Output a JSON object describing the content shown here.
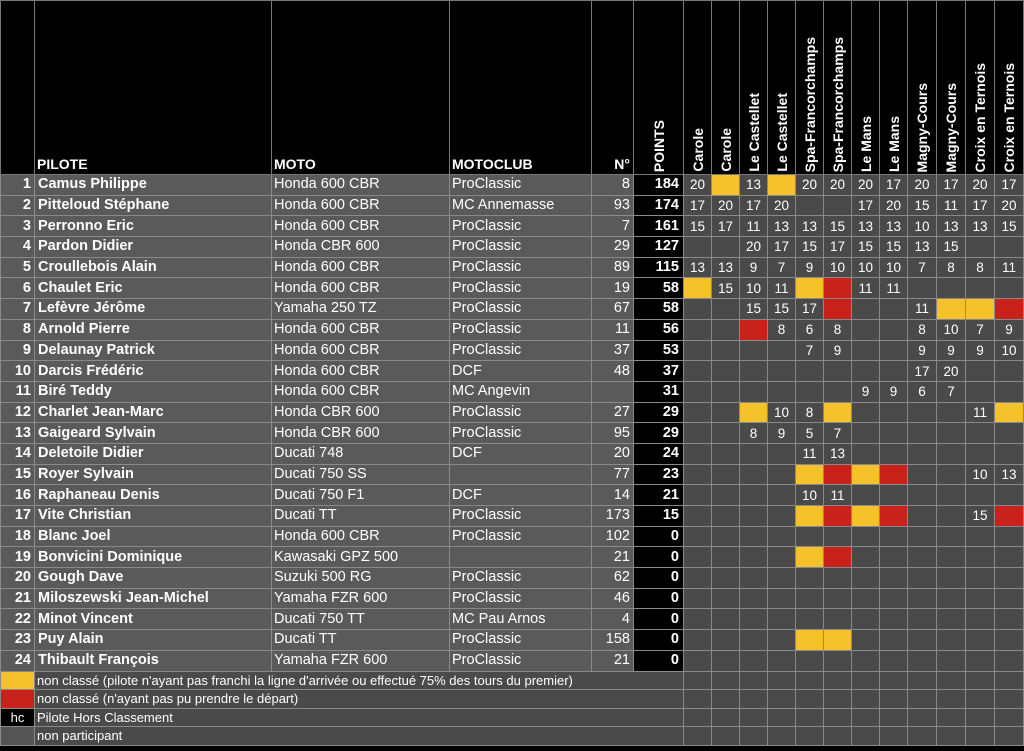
{
  "headers": {
    "pilote": "PILOTE",
    "moto": "MOTO",
    "motoclub": "MOTOCLUB",
    "numero": "N°",
    "points": "POINTS",
    "races": [
      "Carole",
      "Carole",
      "Le Castellet",
      "Le Castellet",
      "Spa-Francorchamps",
      "Spa-Francorchamps",
      "Le Mans",
      "Le Mans",
      "Magny-Cours",
      "Magny-Cours",
      "Croix en Ternois",
      "Croix en Ternois"
    ]
  },
  "status_colors": {
    "y": "#f6c22c",
    "r": "#c8221a",
    "empty": "#4a4a4a"
  },
  "rows": [
    {
      "rank": "1",
      "pilot": "Camus Philippe",
      "moto": "Honda 600 CBR",
      "club": "ProClassic",
      "no": "8",
      "points": "184",
      "results": [
        "20",
        "y",
        "13",
        "y",
        "20",
        "20",
        "20",
        "17",
        "20",
        "17",
        "20",
        "17"
      ]
    },
    {
      "rank": "2",
      "pilot": "Pitteloud Stéphane",
      "moto": "Honda 600 CBR",
      "club": "MC Annemasse",
      "no": "93",
      "points": "174",
      "results": [
        "17",
        "20",
        "17",
        "20",
        "",
        "",
        "17",
        "20",
        "15",
        "11",
        "17",
        "20"
      ]
    },
    {
      "rank": "3",
      "pilot": "Perronno Eric",
      "moto": "Honda 600 CBR",
      "club": "ProClassic",
      "no": "7",
      "points": "161",
      "results": [
        "15",
        "17",
        "11",
        "13",
        "13",
        "15",
        "13",
        "13",
        "10",
        "13",
        "13",
        "15"
      ]
    },
    {
      "rank": "4",
      "pilot": "Pardon Didier",
      "moto": "Honda CBR 600",
      "club": "ProClassic",
      "no": "29",
      "points": "127",
      "results": [
        "",
        "",
        "20",
        "17",
        "15",
        "17",
        "15",
        "15",
        "13",
        "15",
        "",
        ""
      ]
    },
    {
      "rank": "5",
      "pilot": "Croullebois Alain",
      "moto": "Honda 600 CBR",
      "club": "ProClassic",
      "no": "89",
      "points": "115",
      "results": [
        "13",
        "13",
        "9",
        "7",
        "9",
        "10",
        "10",
        "10",
        "7",
        "8",
        "8",
        "11"
      ]
    },
    {
      "rank": "6",
      "pilot": "Chaulet Eric",
      "moto": "Honda 600 CBR",
      "club": "ProClassic",
      "no": "19",
      "points": "58",
      "results": [
        "y",
        "15",
        "10",
        "11",
        "y",
        "r",
        "11",
        "11",
        "",
        "",
        "",
        ""
      ]
    },
    {
      "rank": "7",
      "pilot": "Lefèvre Jérôme",
      "moto": "Yamaha 250 TZ",
      "club": "ProClassic",
      "no": "67",
      "points": "58",
      "results": [
        "",
        "",
        "15",
        "15",
        "17",
        "r",
        "",
        "",
        "11",
        "y",
        "y",
        "r"
      ]
    },
    {
      "rank": "8",
      "pilot": "Arnold Pierre",
      "moto": "Honda 600 CBR",
      "club": "ProClassic",
      "no": "11",
      "points": "56",
      "results": [
        "",
        "",
        "r",
        "8",
        "6",
        "8",
        "",
        "",
        "8",
        "10",
        "7",
        "9"
      ]
    },
    {
      "rank": "9",
      "pilot": "Delaunay Patrick",
      "moto": "Honda 600 CBR",
      "club": "ProClassic",
      "no": "37",
      "points": "53",
      "results": [
        "",
        "",
        "",
        "",
        "7",
        "9",
        "",
        "",
        "9",
        "9",
        "9",
        "10"
      ]
    },
    {
      "rank": "10",
      "pilot": "Darcis Frédéric",
      "moto": "Honda 600 CBR",
      "club": "DCF",
      "no": "48",
      "points": "37",
      "results": [
        "",
        "",
        "",
        "",
        "",
        "",
        "",
        "",
        "17",
        "20",
        "",
        ""
      ]
    },
    {
      "rank": "11",
      "pilot": "Biré Teddy",
      "moto": "Honda 600 CBR",
      "club": "MC Angevin",
      "no": "",
      "points": "31",
      "results": [
        "",
        "",
        "",
        "",
        "",
        "",
        "9",
        "9",
        "6",
        "7",
        "",
        ""
      ]
    },
    {
      "rank": "12",
      "pilot": "Charlet Jean-Marc",
      "moto": "Honda CBR 600",
      "club": "ProClassic",
      "no": "27",
      "points": "29",
      "results": [
        "",
        "",
        "y",
        "10",
        "8",
        "y",
        "",
        "",
        "",
        "",
        "11",
        "y"
      ]
    },
    {
      "rank": "13",
      "pilot": "Gaigeard Sylvain",
      "moto": "Honda CBR 600",
      "club": "ProClassic",
      "no": "95",
      "points": "29",
      "results": [
        "",
        "",
        "8",
        "9",
        "5",
        "7",
        "",
        "",
        "",
        "",
        "",
        ""
      ]
    },
    {
      "rank": "14",
      "pilot": "Deletoile Didier",
      "moto": "Ducati 748",
      "club": "DCF",
      "no": "20",
      "points": "24",
      "results": [
        "",
        "",
        "",
        "",
        "11",
        "13",
        "",
        "",
        "",
        "",
        "",
        ""
      ]
    },
    {
      "rank": "15",
      "pilot": "Royer Sylvain",
      "moto": "Ducati 750 SS",
      "club": "",
      "no": "77",
      "points": "23",
      "results": [
        "",
        "",
        "",
        "",
        "y",
        "r",
        "y",
        "r",
        "",
        "",
        "10",
        "13"
      ]
    },
    {
      "rank": "16",
      "pilot": "Raphaneau Denis",
      "moto": "Ducati 750 F1",
      "club": "DCF",
      "no": "14",
      "points": "21",
      "results": [
        "",
        "",
        "",
        "",
        "10",
        "11",
        "",
        "",
        "",
        "",
        "",
        ""
      ]
    },
    {
      "rank": "17",
      "pilot": "Vite Christian",
      "moto": "Ducati TT",
      "club": "ProClassic",
      "no": "173",
      "points": "15",
      "results": [
        "",
        "",
        "",
        "",
        "y",
        "r",
        "y",
        "r",
        "",
        "",
        "15",
        "r"
      ]
    },
    {
      "rank": "18",
      "pilot": "Blanc Joel",
      "moto": "Honda 600 CBR",
      "club": "ProClassic",
      "no": "102",
      "points": "0",
      "results": [
        "",
        "",
        "",
        "",
        "",
        "",
        "",
        "",
        "",
        "",
        "",
        ""
      ]
    },
    {
      "rank": "19",
      "pilot": "Bonvicini Dominique",
      "moto": "Kawasaki GPZ 500",
      "club": "",
      "no": "21",
      "points": "0",
      "results": [
        "",
        "",
        "",
        "",
        "y",
        "r",
        "",
        "",
        "",
        "",
        "",
        ""
      ]
    },
    {
      "rank": "20",
      "pilot": "Gough Dave",
      "moto": "Suzuki 500 RG",
      "club": "ProClassic",
      "no": "62",
      "points": "0",
      "results": [
        "",
        "",
        "",
        "",
        "",
        "",
        "",
        "",
        "",
        "",
        "",
        ""
      ]
    },
    {
      "rank": "21",
      "pilot": "Miloszewski Jean-Michel",
      "moto": "Yamaha FZR 600",
      "club": "ProClassic",
      "no": "46",
      "points": "0",
      "results": [
        "",
        "",
        "",
        "",
        "",
        "",
        "",
        "",
        "",
        "",
        "",
        ""
      ]
    },
    {
      "rank": "22",
      "pilot": "Minot Vincent",
      "moto": "Ducati 750 TT",
      "club": "MC Pau Arnos",
      "no": "4",
      "points": "0",
      "results": [
        "",
        "",
        "",
        "",
        "",
        "",
        "",
        "",
        "",
        "",
        "",
        ""
      ]
    },
    {
      "rank": "23",
      "pilot": "Puy Alain",
      "moto": "Ducati TT",
      "club": "ProClassic",
      "no": "158",
      "points": "0",
      "results": [
        "",
        "",
        "",
        "",
        "y",
        "y",
        "",
        "",
        "",
        "",
        "",
        ""
      ]
    },
    {
      "rank": "24",
      "pilot": "Thibault François",
      "moto": "Yamaha FZR 600",
      "club": "ProClassic",
      "no": "21",
      "points": "0",
      "results": [
        "",
        "",
        "",
        "",
        "",
        "",
        "",
        "",
        "",
        "",
        "",
        ""
      ]
    }
  ],
  "legend": [
    {
      "swatch": "y",
      "mark": "",
      "text": "non classé (pilote n'ayant pas franchi la ligne d'arrivée ou effectué 75% des tours du premier)"
    },
    {
      "swatch": "red",
      "mark": "",
      "text": "non classé (n'ayant pas pu prendre le départ)"
    },
    {
      "swatch": "",
      "mark": "hc",
      "text": "Pilote Hors Classement"
    },
    {
      "swatch": "g",
      "mark": "",
      "text": "non participant"
    }
  ]
}
